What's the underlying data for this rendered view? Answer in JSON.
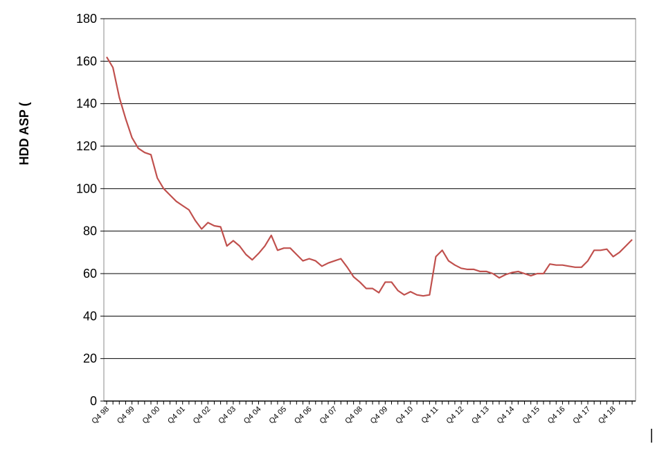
{
  "chart_data": {
    "type": "line",
    "title": "",
    "ylabel": "HDD ASP (",
    "xlabel": "",
    "ylim": [
      0,
      180
    ],
    "yticks": [
      "0",
      "20",
      "40",
      "60",
      "80",
      "100",
      "120",
      "140",
      "160",
      "180"
    ],
    "xticks": [
      "Q4 98",
      "Q4 99",
      "Q4 00",
      "Q4 01",
      "Q4 02",
      "Q4 03",
      "Q4 04",
      "Q4 05",
      "Q4 06",
      "Q4 07",
      "Q4 08",
      "Q4 09",
      "Q4 10",
      "Q4 11",
      "Q4 12",
      "Q4 13",
      "Q4 14",
      "Q4 15",
      "Q4 16",
      "Q4 17",
      "Q4 18"
    ],
    "grid": true,
    "colors": {
      "line": "#c0504d",
      "grid": "#000000",
      "axis": "#000000"
    },
    "series": [
      {
        "values": [
          162,
          157,
          143,
          133,
          124,
          119,
          117,
          116,
          105,
          100,
          97,
          94,
          92,
          90,
          85,
          81,
          84,
          82.5,
          82,
          73,
          75.5,
          73,
          69,
          66.5,
          69.5,
          73,
          78,
          71,
          72,
          72,
          69,
          66,
          67,
          66,
          63.5,
          65,
          66,
          67,
          63,
          58.5,
          56,
          53,
          53,
          51,
          56,
          56,
          52,
          50,
          51.5,
          50,
          49.5,
          50,
          68,
          71,
          66,
          64,
          62.5,
          62,
          62,
          61,
          61,
          60,
          58,
          59.5,
          60.5,
          61,
          60,
          59,
          60,
          60,
          64.5,
          64,
          64,
          63.5,
          63,
          63,
          66,
          71,
          71,
          71.5,
          68,
          70,
          73,
          76
        ]
      }
    ]
  }
}
